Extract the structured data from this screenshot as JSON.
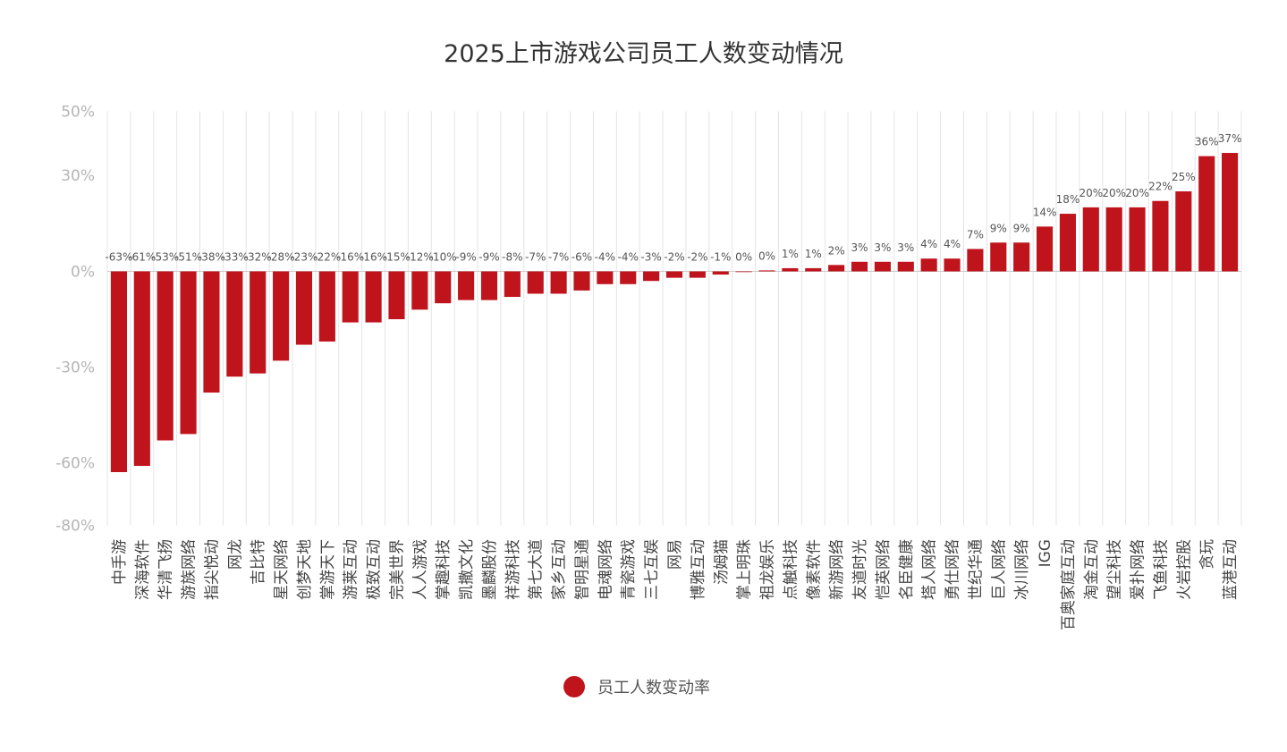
{
  "chart_data": {
    "type": "bar",
    "title": "2025上市游戏公司员工人数变动情况",
    "xlabel": "",
    "ylabel": "",
    "ylim": [
      -80,
      50
    ],
    "yticks": [
      50,
      30,
      0,
      -30,
      -60,
      -80
    ],
    "ytick_labels": [
      "50%",
      "30%",
      "0%",
      "-30%",
      "-60%",
      "-80%"
    ],
    "grid": "vertical lines between categories",
    "legend_position": "bottom",
    "categories": [
      "中手游",
      "深海软件",
      "华清飞扬",
      "游族网络",
      "指尖悦动",
      "网龙",
      "吉比特",
      "星天网络",
      "创梦天地",
      "掌游天下",
      "游莱互动",
      "极致互动",
      "完美世界",
      "人人游戏",
      "掌趣科技",
      "凯撒文化",
      "墨麟股份",
      "祥游科技",
      "第七大道",
      "家乡互动",
      "智明星通",
      "电魂网络",
      "青瓷游戏",
      "三七互娱",
      "网易",
      "博雅互动",
      "汤姆猫",
      "掌上明珠",
      "祖龙娱乐",
      "点触科技",
      "像素软件",
      "新游网络",
      "友道时光",
      "恺英网络",
      "名臣健康",
      "塔人网络",
      "勇仕网络",
      "世纪华通",
      "巨人网络",
      "冰川网络",
      "IGG",
      "百奥家庭互动",
      "淘金互动",
      "望尘科技",
      "爱扑网络",
      "飞鱼科技",
      "火岩控股",
      "贪玩",
      "蓝港互动"
    ],
    "series": [
      {
        "name": "员工人数变动率",
        "color": "#c0141c",
        "values": [
          -63,
          -61,
          -53,
          -51,
          -38,
          -33,
          -32,
          -28,
          -23,
          -22,
          -16,
          -16,
          -15,
          -12,
          -10,
          -9,
          -9,
          -8,
          -7,
          -7,
          -6,
          -4,
          -4,
          -3,
          -2,
          -2,
          -1,
          0,
          0.3,
          1,
          1,
          2,
          3,
          3,
          3,
          4,
          4,
          7,
          9,
          9,
          14,
          18,
          20,
          20,
          20,
          22,
          25,
          36,
          37
        ],
        "labels": [
          "-63%",
          "-61%",
          "-53%",
          "-51%",
          "-38%",
          "-33%",
          "-32%",
          "-28%",
          "-23%",
          "-22%",
          "-16%",
          "-16%",
          "-15%",
          "-12%",
          "-10%",
          "-9%",
          "-9%",
          "-8%",
          "-7%",
          "-7%",
          "-6%",
          "-4%",
          "-4%",
          "-3%",
          "-2%",
          "-2%",
          "-1%",
          "0%",
          "0%",
          "1%",
          "1%",
          "2%",
          "3%",
          "3%",
          "3%",
          "4%",
          "4%",
          "7%",
          "9%",
          "9%",
          "14%",
          "18%",
          "20%",
          "20%",
          "20%",
          "22%",
          "25%",
          "36%",
          "37%"
        ]
      }
    ],
    "colors": {
      "bar": "#c0141c",
      "grid": "#e4e4e4",
      "zero_line": "#cccccc"
    }
  }
}
